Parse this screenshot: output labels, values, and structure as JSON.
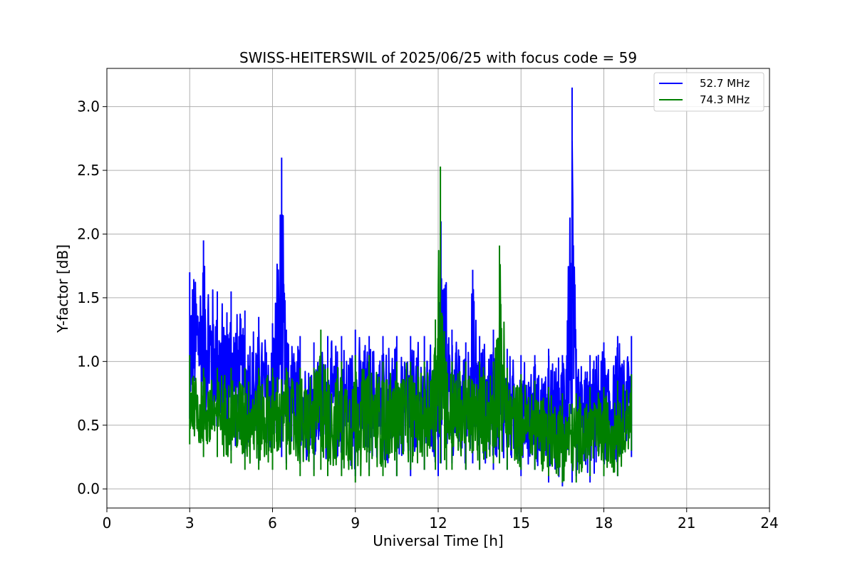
{
  "chart_data": {
    "type": "line",
    "title": "SWISS-HEITERSWIL of 2025/06/25 with focus code = 59",
    "xlabel": "Universal Time [h]",
    "ylabel": "Y-factor [dB]",
    "xlim": [
      0,
      24
    ],
    "ylim": [
      -0.15,
      3.3
    ],
    "xticks": [
      0,
      3,
      6,
      9,
      12,
      15,
      18,
      21,
      24
    ],
    "yticks": [
      0.0,
      0.5,
      1.0,
      1.5,
      2.0,
      2.5,
      3.0
    ],
    "xtick_labels": [
      "0",
      "3",
      "6",
      "9",
      "12",
      "15",
      "18",
      "21",
      "24"
    ],
    "ytick_labels": [
      "0.0",
      "0.5",
      "1.0",
      "1.5",
      "2.0",
      "2.5",
      "3.0"
    ],
    "grid": true,
    "legend_position": "top-right",
    "series": [
      {
        "name": "52.7 MHz",
        "color": "#0000ff",
        "x": [
          3.0,
          3.5,
          4.0,
          4.5,
          5.0,
          5.5,
          6.0,
          6.33,
          6.5,
          7.0,
          7.5,
          8.0,
          8.5,
          9.0,
          9.5,
          10.0,
          10.5,
          11.0,
          11.5,
          12.0,
          12.1,
          12.5,
          13.0,
          13.25,
          13.5,
          14.0,
          14.5,
          15.0,
          15.5,
          16.0,
          16.5,
          16.85,
          17.0,
          17.5,
          18.0,
          18.5,
          19.0
        ],
        "upper": [
          1.7,
          1.95,
          1.55,
          1.55,
          1.4,
          1.35,
          1.3,
          2.6,
          1.25,
          1.2,
          1.15,
          1.2,
          1.2,
          1.25,
          1.2,
          1.2,
          1.2,
          1.2,
          1.2,
          1.15,
          2.1,
          1.25,
          1.15,
          1.72,
          1.2,
          1.25,
          1.1,
          1.05,
          1.05,
          1.1,
          1.05,
          3.15,
          1.1,
          1.05,
          1.15,
          1.2,
          1.2
        ],
        "lower": [
          0.55,
          0.45,
          0.35,
          0.3,
          0.25,
          0.2,
          0.2,
          0.25,
          0.2,
          0.2,
          0.15,
          0.15,
          0.15,
          0.1,
          0.15,
          0.15,
          0.1,
          0.1,
          0.15,
          0.1,
          0.2,
          0.2,
          0.15,
          0.2,
          0.15,
          0.15,
          0.15,
          0.1,
          0.15,
          0.05,
          0.02,
          0.05,
          0.1,
          0.05,
          0.1,
          0.1,
          0.25
        ]
      },
      {
        "name": "74.3 MHz",
        "color": "#008000",
        "x": [
          3.0,
          3.5,
          4.0,
          4.5,
          5.0,
          5.5,
          6.0,
          6.5,
          7.0,
          7.5,
          7.75,
          8.0,
          8.5,
          9.0,
          9.5,
          10.0,
          10.5,
          11.0,
          11.5,
          11.9,
          12.08,
          12.3,
          12.5,
          13.0,
          13.5,
          14.0,
          14.22,
          14.5,
          15.0,
          15.5,
          16.0,
          16.5,
          17.0,
          17.5,
          18.0,
          18.5,
          19.0
        ],
        "upper": [
          1.05,
          0.95,
          0.95,
          0.95,
          0.95,
          0.95,
          0.95,
          0.95,
          0.95,
          0.95,
          1.25,
          0.95,
          1.0,
          1.05,
          1.05,
          1.0,
          1.0,
          1.0,
          1.0,
          1.33,
          2.53,
          1.0,
          1.0,
          1.0,
          1.0,
          1.0,
          1.91,
          0.95,
          0.9,
          0.85,
          0.8,
          0.75,
          0.75,
          0.8,
          0.8,
          0.85,
          0.9
        ],
        "lower": [
          0.35,
          0.25,
          0.25,
          0.2,
          0.15,
          0.15,
          0.15,
          0.15,
          0.1,
          0.1,
          0.15,
          0.1,
          0.1,
          0.05,
          0.1,
          0.1,
          0.1,
          0.15,
          0.15,
          0.15,
          0.2,
          0.15,
          0.15,
          0.15,
          0.15,
          0.2,
          0.2,
          0.15,
          0.15,
          0.15,
          0.1,
          0.05,
          0.05,
          0.1,
          0.1,
          0.1,
          0.3
        ]
      }
    ]
  }
}
